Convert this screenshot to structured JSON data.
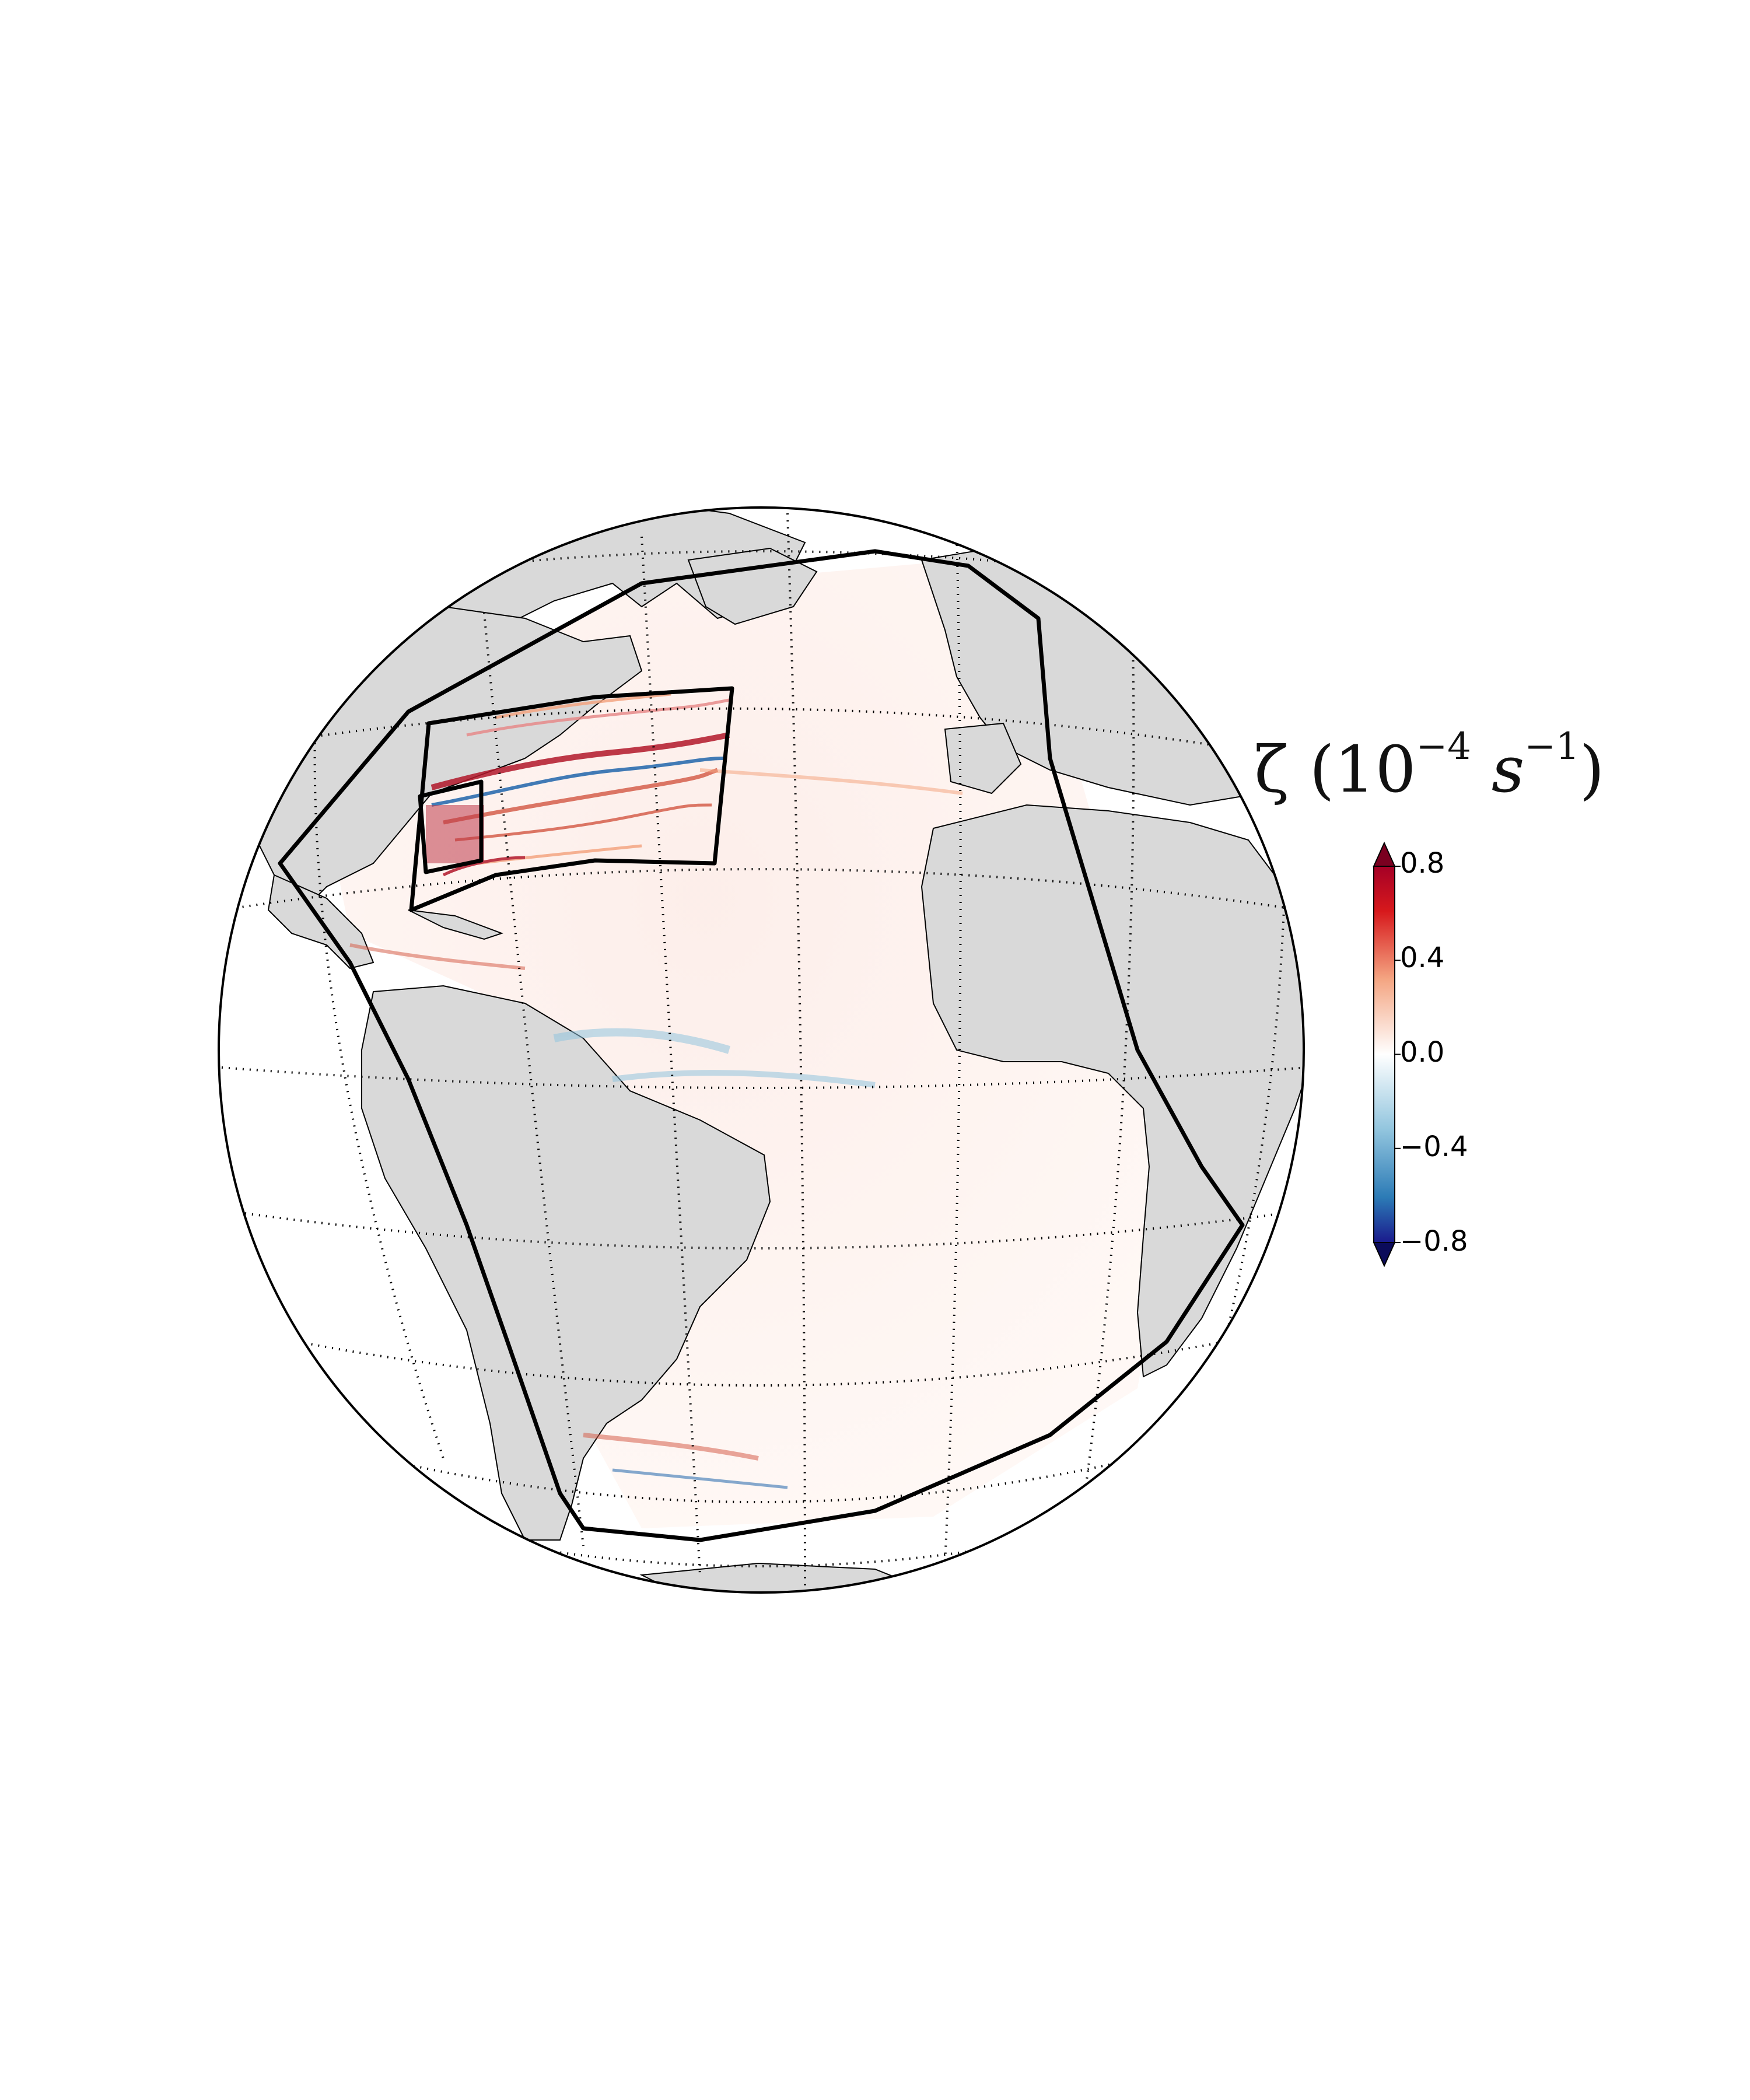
{
  "colorbar": {
    "title_symbol": "ζ",
    "title_base": "10",
    "title_exp1": "−4",
    "title_unit": "s",
    "title_exp2": "−1",
    "ticks": [
      "0.8",
      "0.4",
      "0.0",
      "−0.4",
      "−0.8"
    ],
    "tick_values": [
      0.8,
      0.4,
      0.0,
      -0.4,
      -0.8
    ],
    "range": [
      -0.8,
      0.8
    ],
    "colormap": "seismic",
    "extend": "both"
  },
  "map": {
    "projection": "orthographic",
    "land_color": "#d9d9d9",
    "ocean_color": "#ffffff",
    "graticule": "dotted",
    "domains": [
      "outer-domain",
      "middle-domain",
      "inner-domain"
    ]
  },
  "colors": {
    "positive": "#b2182b",
    "negative": "#2166ac",
    "land": "#d9d9d9",
    "outline": "#000000"
  }
}
